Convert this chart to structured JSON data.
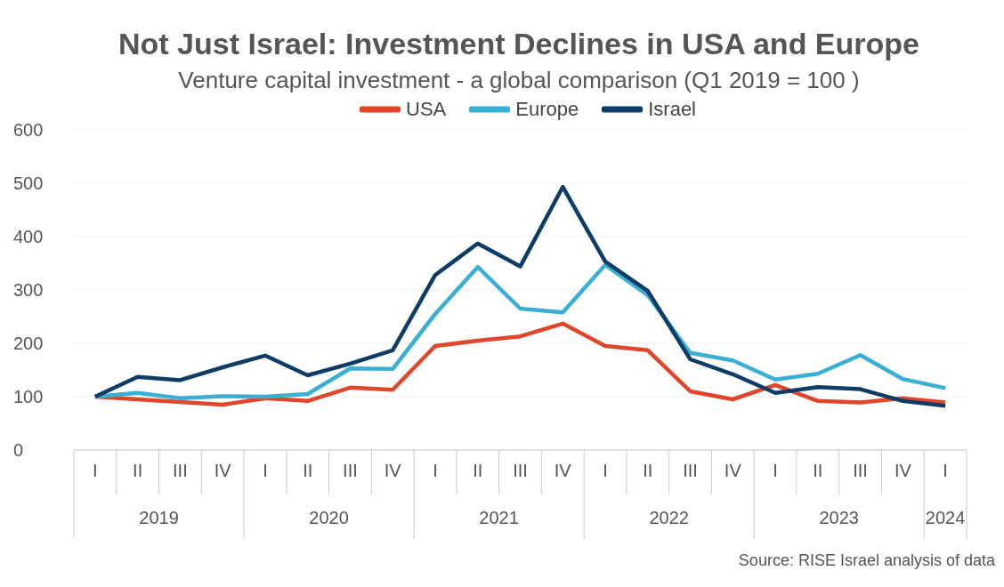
{
  "chart_data": {
    "type": "line",
    "title": "Not Just Israel: Investment Declines in USA and Europe",
    "subtitle": "Venture capital investment - a global comparison (Q1 2019 = 100 )",
    "categories": [
      "I",
      "II",
      "III",
      "IV",
      "I",
      "II",
      "III",
      "IV",
      "I",
      "II",
      "III",
      "IV",
      "I",
      "II",
      "III",
      "IV",
      "I",
      "II",
      "III",
      "IV",
      "I"
    ],
    "series": [
      {
        "name": "USA",
        "color": "#e0462a",
        "values": [
          100,
          95,
          90,
          85,
          97,
          92,
          117,
          113,
          195,
          205,
          213,
          237,
          195,
          187,
          110,
          95,
          122,
          92,
          89,
          97,
          89
        ]
      },
      {
        "name": "Europe",
        "color": "#3aafd6",
        "values": [
          100,
          107,
          97,
          101,
          100,
          105,
          153,
          152,
          255,
          343,
          265,
          258,
          347,
          290,
          182,
          168,
          132,
          143,
          178,
          133,
          116
        ]
      },
      {
        "name": "Israel",
        "color": "#0d3d66",
        "values": [
          100,
          137,
          131,
          155,
          177,
          140,
          162,
          187,
          328,
          387,
          344,
          493,
          353,
          298,
          170,
          142,
          107,
          118,
          114,
          92,
          83
        ]
      }
    ],
    "ylim": [
      0,
      600
    ],
    "yticks": [
      0,
      100,
      200,
      300,
      400,
      500,
      600
    ],
    "grid": "y",
    "legend": "top",
    "annotations": [
      "2019",
      "2020",
      "2021",
      "2022",
      "2023",
      "2024",
      "Source: RISE Israel analysis of data"
    ]
  }
}
